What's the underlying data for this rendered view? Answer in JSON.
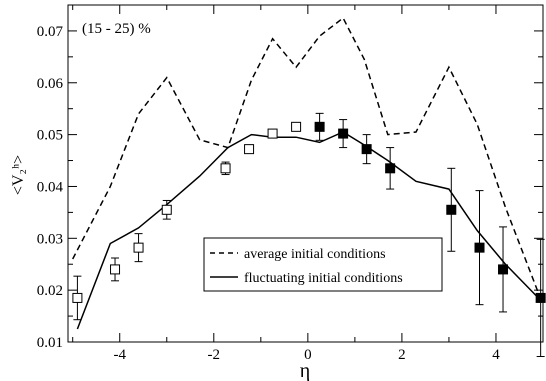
{
  "chart_data": {
    "type": "line",
    "annotation": "(15 - 25) %",
    "xlabel": "η",
    "ylabel": "<V₂ʰ>",
    "xlim": [
      -5.1,
      5.0
    ],
    "ylim": [
      0.01,
      0.075
    ],
    "x_ticks": [
      -4,
      -2,
      0,
      2,
      4
    ],
    "x_tick_labels": [
      "-4",
      "-2",
      "0",
      "2",
      "4"
    ],
    "y_ticks": [
      0.01,
      0.02,
      0.03,
      0.04,
      0.05,
      0.06,
      0.07
    ],
    "y_tick_labels": [
      "0.01",
      "0.02",
      "0.03",
      "0.04",
      "0.05",
      "0.06",
      "0.07"
    ],
    "grid": false,
    "legend_position": "bottom-right",
    "series": [
      {
        "name": "average initial conditions",
        "style": "dashed",
        "color": "#000000",
        "x": [
          -5.0,
          -4.2,
          -3.6,
          -3.0,
          -2.3,
          -1.7,
          -1.2,
          -0.75,
          -0.25,
          0.25,
          0.75,
          1.2,
          1.7,
          2.3,
          3.0,
          3.6,
          4.2,
          4.9
        ],
        "y": [
          0.026,
          0.04,
          0.054,
          0.061,
          0.049,
          0.0475,
          0.0605,
          0.0685,
          0.063,
          0.069,
          0.0725,
          0.0645,
          0.05,
          0.0505,
          0.063,
          0.052,
          0.036,
          0.0195
        ]
      },
      {
        "name": "fluctuating initial conditions",
        "style": "solid",
        "color": "#000000",
        "x": [
          -4.9,
          -4.2,
          -3.6,
          -3.0,
          -2.3,
          -1.7,
          -1.2,
          -0.75,
          -0.25,
          0.25,
          0.75,
          1.2,
          1.7,
          2.3,
          3.0,
          3.6,
          4.2,
          4.9
        ],
        "y": [
          0.0125,
          0.029,
          0.032,
          0.0365,
          0.042,
          0.0475,
          0.05,
          0.0495,
          0.0495,
          0.0485,
          0.0505,
          0.048,
          0.045,
          0.041,
          0.0395,
          0.0315,
          0.025,
          0.0185
        ]
      },
      {
        "name": "open squares",
        "marker": "open-square",
        "x": [
          -4.9,
          -4.1,
          -3.6,
          -3.0,
          -1.75,
          -1.25,
          -0.75,
          -0.25
        ],
        "y": [
          0.0185,
          0.024,
          0.0282,
          0.0355,
          0.0435,
          0.0472,
          0.0502,
          0.0515
        ],
        "yerr": [
          0.0042,
          0.0022,
          0.0027,
          0.0018,
          0.0012,
          0.0008,
          0.0006,
          0.0005
        ]
      },
      {
        "name": "filled squares",
        "marker": "filled-square",
        "x": [
          0.25,
          0.75,
          1.25,
          1.75,
          3.05,
          3.65,
          4.15,
          4.95
        ],
        "y": [
          0.0515,
          0.0502,
          0.0472,
          0.0435,
          0.0355,
          0.0282,
          0.024,
          0.0185
        ],
        "yerr": [
          0.0026,
          0.0027,
          0.0028,
          0.004,
          0.008,
          0.011,
          0.0082,
          0.0113
        ]
      }
    ],
    "legend": [
      {
        "label": "average initial conditions",
        "style": "dashed"
      },
      {
        "label": "fluctuating initial conditions",
        "style": "solid"
      }
    ]
  }
}
